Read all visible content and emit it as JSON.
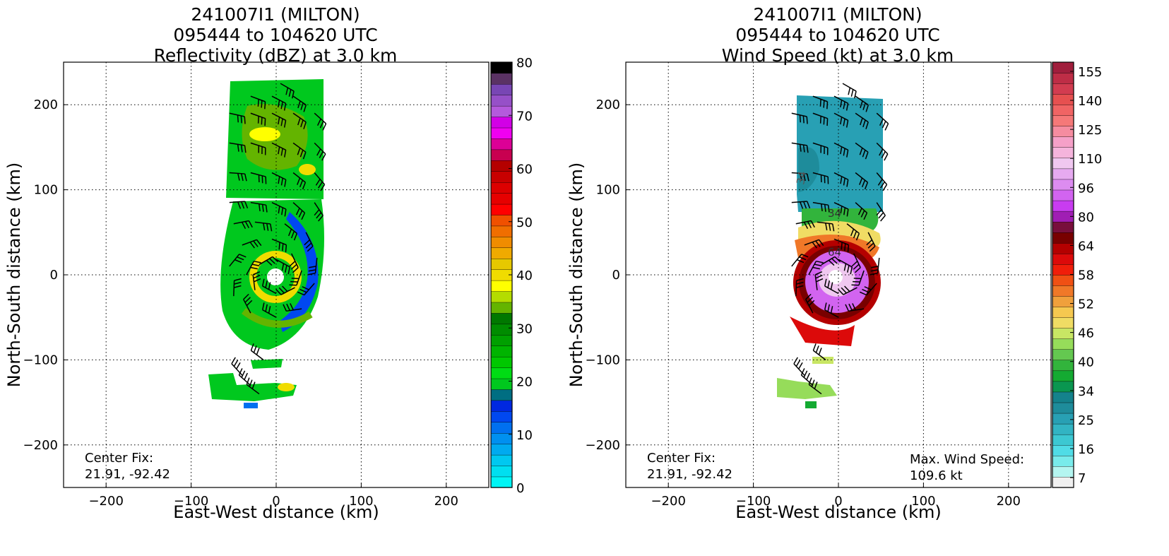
{
  "panels": [
    {
      "title_lines": [
        "241007I1 (MILTON)",
        "095444 to 104620 UTC",
        "Reflectivity (dBZ) at 3.0 km"
      ],
      "xlabel": "East-West distance (km)",
      "ylabel": "North-South distance (km)",
      "annotation_left": [
        "Center Fix:",
        "21.91, -92.42"
      ],
      "annotation_right": [],
      "colorbar": {
        "ticks": [
          "0",
          "10",
          "20",
          "30",
          "40",
          "50",
          "60",
          "70",
          "80"
        ],
        "colors": [
          "#00f5f5",
          "#00dff0",
          "#00c8f0",
          "#00aaf0",
          "#0090f0",
          "#0070f0",
          "#0048f0",
          "#0028e0",
          "#006e82",
          "#00c81e",
          "#00dc14",
          "#00c800",
          "#00b400",
          "#00a000",
          "#008c00",
          "#007800",
          "#64b400",
          "#b4dc00",
          "#ffff00",
          "#f0dc00",
          "#e6c800",
          "#f0aa00",
          "#f08c00",
          "#f06e00",
          "#f05000",
          "#ff0000",
          "#e60000",
          "#dc0000",
          "#c80000",
          "#b40000",
          "#c80050",
          "#dc0096",
          "#f000f0",
          "#d200e6",
          "#b45adc",
          "#9650c8",
          "#7846b4",
          "#5a3264",
          "#000000"
        ]
      },
      "chart_data": {
        "type": "heatmap",
        "title": "Reflectivity (dBZ) at 3.0 km",
        "xlabel": "East-West distance (km)",
        "ylabel": "North-South distance (km)",
        "xlim": [
          -250,
          250
        ],
        "ylim": [
          -250,
          250
        ],
        "xticks": [
          -200,
          -100,
          0,
          100,
          200
        ],
        "yticks": [
          -200,
          -100,
          0,
          100,
          200
        ],
        "colorbar_range": [
          0,
          80
        ],
        "colorbar_ticks": [
          0,
          10,
          20,
          30,
          40,
          50,
          60,
          70,
          80
        ],
        "grid": true,
        "center_fix": [
          21.91,
          -92.42
        ]
      }
    },
    {
      "title_lines": [
        "241007I1 (MILTON)",
        "095444 to 104620 UTC",
        "Wind Speed (kt) at 3.0 km"
      ],
      "xlabel": "East-West distance (km)",
      "ylabel": "North-South distance (km)",
      "annotation_left": [
        "Center Fix:",
        "21.91, -92.42"
      ],
      "annotation_right": [
        "Max. Wind Speed:",
        "109.6 kt"
      ],
      "contour_labels": [
        "34",
        "34",
        "64"
      ],
      "colorbar": {
        "ticks": [
          "7",
          "16",
          "25",
          "34",
          "40",
          "46",
          "52",
          "58",
          "64",
          "80",
          "96",
          "110",
          "125",
          "140",
          "155"
        ],
        "colors": [
          "#f0f0f0",
          "#b4f5f0",
          "#78ebeb",
          "#50dce6",
          "#3cc8d2",
          "#32b4c3",
          "#28a0b4",
          "#1e8c9b",
          "#14828c",
          "#0a9650",
          "#14aa32",
          "#32b43c",
          "#64c850",
          "#96dc5a",
          "#c8e664",
          "#f0dc64",
          "#f5c850",
          "#f0a03c",
          "#f07828",
          "#f05014",
          "#f01e0a",
          "#dc0a0a",
          "#b40000",
          "#780000",
          "#780f3c",
          "#a01eb4",
          "#c83cf0",
          "#d264f0",
          "#dc8cf0",
          "#e6aaf0",
          "#f0c8f0",
          "#f5b4dc",
          "#f5a0c8",
          "#f58ca0",
          "#f57878",
          "#f06464",
          "#e65050",
          "#d23c50",
          "#be2d46",
          "#a01e3c"
        ]
      },
      "chart_data": {
        "type": "heatmap",
        "title": "Wind Speed (kt) at 3.0 km",
        "xlabel": "East-West distance (km)",
        "ylabel": "North-South distance (km)",
        "xlim": [
          -250,
          250
        ],
        "ylim": [
          -250,
          250
        ],
        "xticks": [
          -200,
          -100,
          0,
          100,
          200
        ],
        "yticks": [
          -200,
          -100,
          0,
          100,
          200
        ],
        "colorbar_ticks": [
          7,
          16,
          25,
          34,
          40,
          46,
          52,
          58,
          64,
          80,
          96,
          110,
          125,
          140,
          155
        ],
        "grid": true,
        "center_fix": [
          21.91,
          -92.42
        ],
        "max_wind_speed_kt": 109.6
      }
    }
  ],
  "barb_points": [
    [
      0,
      18
    ],
    [
      -20,
      12
    ],
    [
      -35,
      0
    ],
    [
      -25,
      -18
    ],
    [
      0,
      -22
    ],
    [
      22,
      -15
    ],
    [
      30,
      5
    ],
    [
      18,
      25
    ],
    [
      -5,
      42
    ],
    [
      -40,
      35
    ],
    [
      -55,
      10
    ],
    [
      -50,
      -25
    ],
    [
      -30,
      -45
    ],
    [
      0,
      -50
    ],
    [
      30,
      -40
    ],
    [
      45,
      -10
    ],
    [
      48,
      20
    ],
    [
      35,
      50
    ],
    [
      10,
      60
    ],
    [
      -25,
      62
    ],
    [
      -50,
      60
    ],
    [
      -55,
      85
    ],
    [
      -30,
      85
    ],
    [
      -5,
      85
    ],
    [
      20,
      85
    ],
    [
      45,
      85
    ],
    [
      -55,
      120
    ],
    [
      -30,
      120
    ],
    [
      -5,
      120
    ],
    [
      20,
      120
    ],
    [
      45,
      120
    ],
    [
      -55,
      155
    ],
    [
      -30,
      155
    ],
    [
      -5,
      155
    ],
    [
      20,
      155
    ],
    [
      45,
      155
    ],
    [
      -55,
      190
    ],
    [
      -30,
      190
    ],
    [
      -5,
      190
    ],
    [
      20,
      190
    ],
    [
      45,
      190
    ],
    [
      -30,
      210
    ],
    [
      -5,
      210
    ],
    [
      20,
      210
    ],
    [
      5,
      225
    ],
    [
      -15,
      -100
    ],
    [
      -40,
      -118
    ],
    [
      -20,
      -140
    ],
    [
      -30,
      -130
    ]
  ]
}
